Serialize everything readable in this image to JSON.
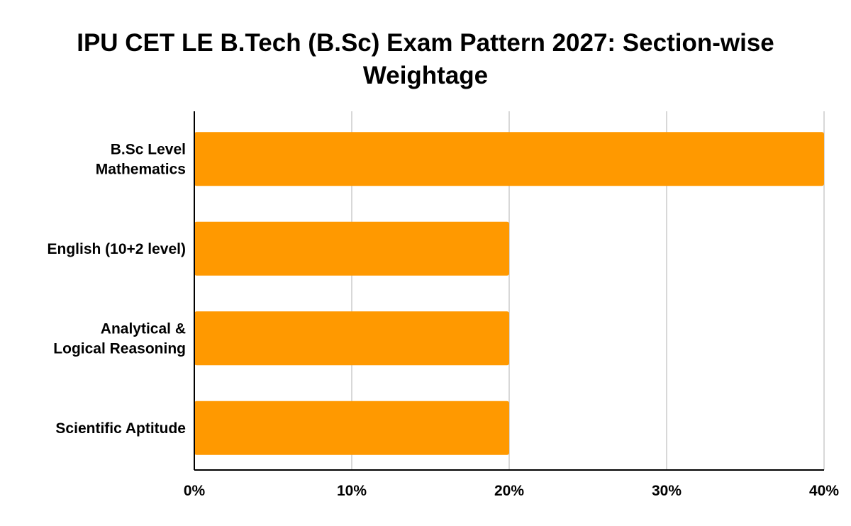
{
  "chart_data": {
    "type": "bar",
    "orientation": "horizontal",
    "title": "IPU CET LE B.Tech (B.Sc) Exam Pattern 2027: Section-wise Weightage",
    "categories": [
      [
        "B.Sc Level",
        "Mathematics"
      ],
      [
        "English (10+2 level)"
      ],
      [
        "Analytical &",
        "Logical Reasoning"
      ],
      [
        "Scientific Aptitude"
      ]
    ],
    "values": [
      40,
      20,
      20,
      20
    ],
    "xlabel": "",
    "ylabel": "",
    "xlim": [
      0,
      40
    ],
    "ticks": [
      "0%",
      "10%",
      "20%",
      "30%",
      "40%"
    ],
    "grid": true,
    "legend": "none",
    "bar_color": "#ff9900",
    "grid_color": "#cccccc",
    "axis_color": "#000000"
  }
}
